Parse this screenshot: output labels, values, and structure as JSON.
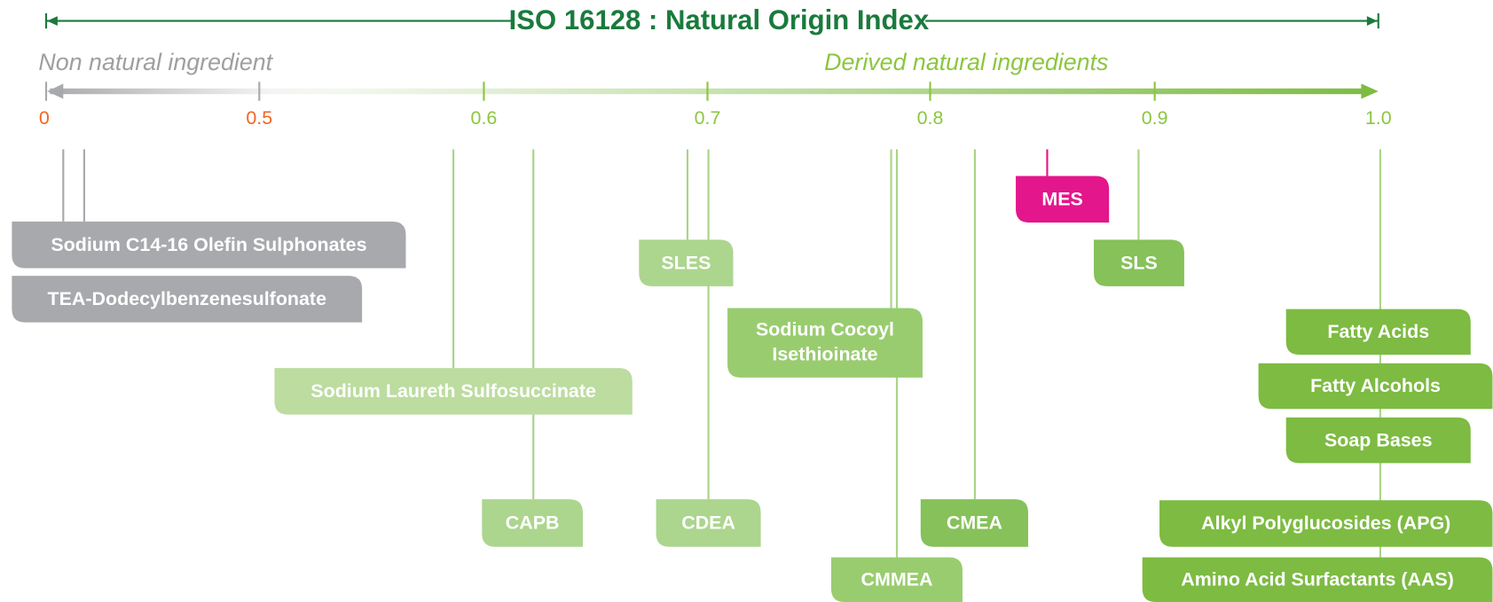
{
  "title": "ISO 16128 : Natural Origin Index",
  "left_label": "Non natural ingredient",
  "right_label": "Derived natural ingredients",
  "axis_ticks": [
    "0",
    "0.5",
    "0.6",
    "0.7",
    "0.8",
    "0.9",
    "1.0"
  ],
  "items": [
    {
      "label": "Sodium C14-16 Olefin Sulphonates"
    },
    {
      "label": "TEA-Dodecylbenzenesulfonate"
    },
    {
      "label": "Sodium Laureth Sulfosuccinate"
    },
    {
      "label": "CAPB"
    },
    {
      "label": "SLES"
    },
    {
      "label": "CDEA"
    },
    {
      "lines": [
        "Sodium Cocoyl",
        "Isethioinate"
      ]
    },
    {
      "label": "CMMEA"
    },
    {
      "label": "CMEA"
    },
    {
      "label": "MES"
    },
    {
      "label": "SLS"
    },
    {
      "label": "Fatty Acids"
    },
    {
      "label": "Fatty Alcohols"
    },
    {
      "label": "Soap Bases"
    },
    {
      "label": "Alkyl Polyglucosides (APG)"
    },
    {
      "label": "Amino Acid Surfactants (AAS)"
    }
  ]
}
